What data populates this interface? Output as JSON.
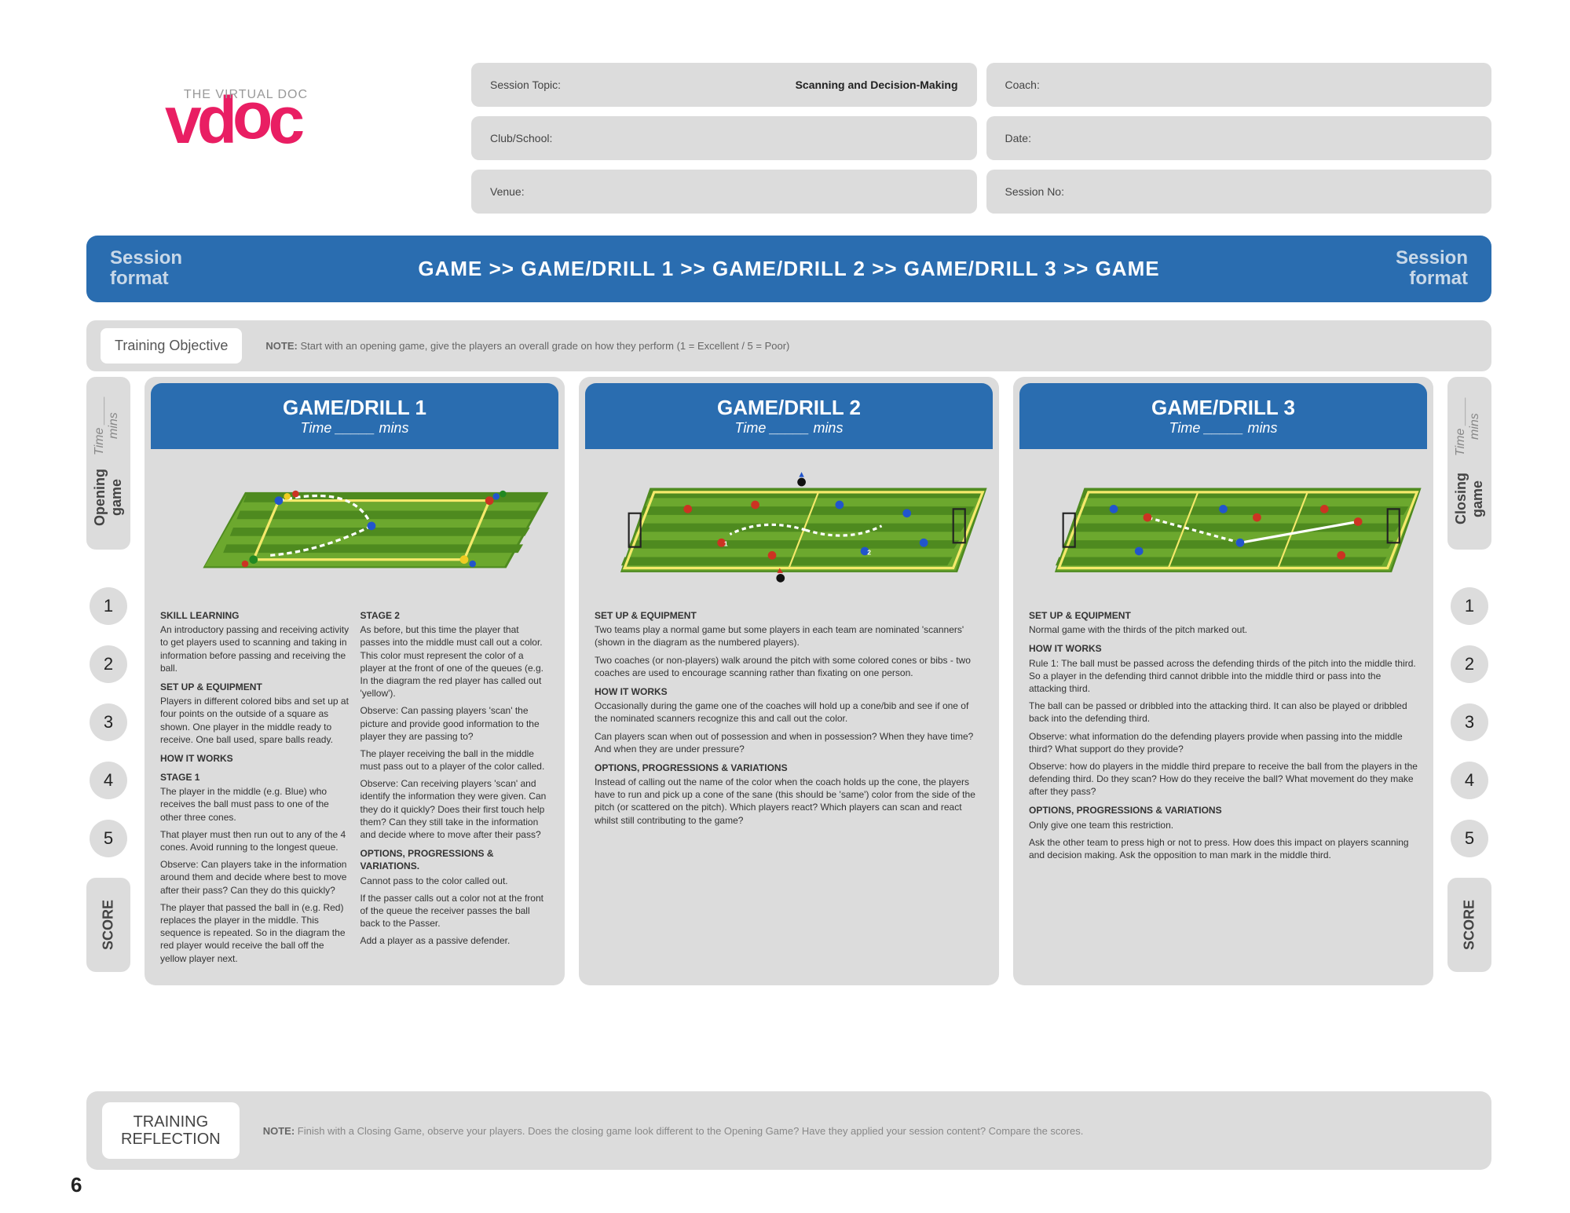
{
  "logo": {
    "tagline": "THE VIRTUAL DOC",
    "text": "vdoc"
  },
  "info": {
    "session_topic_label": "Session Topic:",
    "session_topic_value": "Scanning and Decision-Making",
    "coach_label": "Coach:",
    "club_label": "Club/School:",
    "date_label": "Date:",
    "venue_label": "Venue:",
    "session_no_label": "Session No:"
  },
  "session_format": {
    "left_label": "Session\nformat",
    "sequence": "GAME  >>  GAME/DRILL 1  >>  GAME/DRILL 2  >>  GAME/DRILL 3  >>  GAME",
    "right_label": "Session\nformat"
  },
  "training_objective": {
    "title": "Training Objective",
    "note_prefix": "NOTE:",
    "note_text": " Start with an opening game, give the players an overall grade on how they perform (1 = Excellent / 5 = Poor)"
  },
  "side_left": {
    "label": "Opening game",
    "sub": "Time ____ mins"
  },
  "side_right": {
    "label": "Closing game",
    "sub": "Time ____ mins"
  },
  "score_label": "SCORE",
  "score_buttons": [
    "1",
    "2",
    "3",
    "4",
    "5"
  ],
  "drills": [
    {
      "title": "GAME/DRILL 1",
      "time": "Time _____ mins",
      "col1": {
        "h1": "SKILL LEARNING",
        "p1": "An introductory passing and receiving activity to get players used to scanning and taking in information before passing and receiving the ball.",
        "h2": "SET UP & EQUIPMENT",
        "p2": "Players in different colored bibs and set up at four points on the outside of a square as shown. One player in the middle ready to receive. One ball used, spare balls ready.",
        "h3": "HOW IT WORKS",
        "h3b": "STAGE 1",
        "p3": "The player in the middle (e.g. Blue) who receives the ball must pass to one of the other three cones.",
        "p4": "That player must then run out to any of the 4 cones. Avoid running to the longest queue.",
        "p5": "Observe: Can players take in the information around them and decide where best to move after their pass? Can they do this quickly?",
        "p6": "The player that passed the ball in (e.g. Red) replaces the player in the middle. This sequence is repeated. So in the diagram the red player would receive the ball off the yellow player next."
      },
      "col2": {
        "h1": "STAGE 2",
        "p1": "As before, but this time the player that passes into the middle must call out a color. This color must represent the color of a player at the front of one of the queues (e.g. In the diagram the red player has called out 'yellow').",
        "p2": "Observe: Can passing players 'scan' the picture and provide good information to the player they are passing to?",
        "p3": "The player receiving the ball in the middle must pass out to a player of the color called.",
        "p4": "Observe: Can receiving players 'scan' and identify the information they were given. Can they do it quickly? Does their first touch help them? Can they still take in the information and decide where to move after their pass?",
        "h2": "OPTIONS, PROGRESSIONS & VARIATIONS.",
        "p5": "Cannot pass to the color called out.",
        "p6": "If the passer calls out a color not at the front of the queue the receiver passes the ball back to the Passer.",
        "p7": "Add a player as a passive defender."
      }
    },
    {
      "title": "GAME/DRILL 2",
      "time": "Time _____ mins",
      "h1": "SET UP & EQUIPMENT",
      "p1": "Two teams play a normal game but some players in each team are nominated 'scanners' (shown in the diagram as the numbered players).",
      "p2": "Two coaches (or non-players) walk around the pitch with some colored cones or bibs - two coaches are used to encourage scanning rather than fixating on one person.",
      "h2": "HOW IT WORKS",
      "p3": "Occasionally during the game one of the coaches will hold up a cone/bib and see if one of the nominated scanners recognize this and call out the color.",
      "p4": "Can players scan when out of possession and when in possession? When they have time? And when they are under pressure?",
      "h3": "OPTIONS, PROGRESSIONS & VARIATIONS",
      "p5": "Instead of calling out the name of the color when the coach holds up the cone, the players have to run and pick up a cone of the sane (this should be 'same') color from the side of the pitch (or scattered on the pitch). Which players react? Which players can scan and react whilst still contributing to the game?"
    },
    {
      "title": "GAME/DRILL 3",
      "time": "Time _____ mins",
      "h1": "SET UP & EQUIPMENT",
      "p1": "Normal game with the thirds of the pitch marked out.",
      "h2": "HOW IT WORKS",
      "p2": "Rule 1: The ball must be passed across the defending thirds of the pitch into the middle third. So a player in the defending third cannot dribble into the middle third or pass into the attacking third.",
      "p3": "The ball can be passed or dribbled into the attacking third. It can also be played or dribbled back into the defending third.",
      "p4": "Observe: what information do the defending players provide when passing into the middle third? What support do they provide?",
      "p5": "Observe: how do players in the middle third prepare to receive the ball from the players in the defending third. Do they scan? How do they receive the ball? What movement do they make after they pass?",
      "h3": "OPTIONS, PROGRESSIONS & VARIATIONS",
      "p6": "Only give one team this restriction.",
      "p7": "Ask the other team to press high or not to press. How does this impact on players scanning and decision making.  Ask the opposition to man mark in the middle third."
    }
  ],
  "reflection": {
    "title": "Training Reflection",
    "note_prefix": "NOTE:",
    "note_text": " Finish with a Closing Game, observe your players.  Does the closing game look different to the Opening Game? Have they applied your session content? Compare the scores."
  },
  "page_number": "6",
  "colors": {
    "accent": "#e91e63",
    "blue": "#2a6db0",
    "grey": "#dcdcdc",
    "pitch_green_light": "#6ca82e",
    "pitch_green_dark": "#4e8a1f"
  }
}
